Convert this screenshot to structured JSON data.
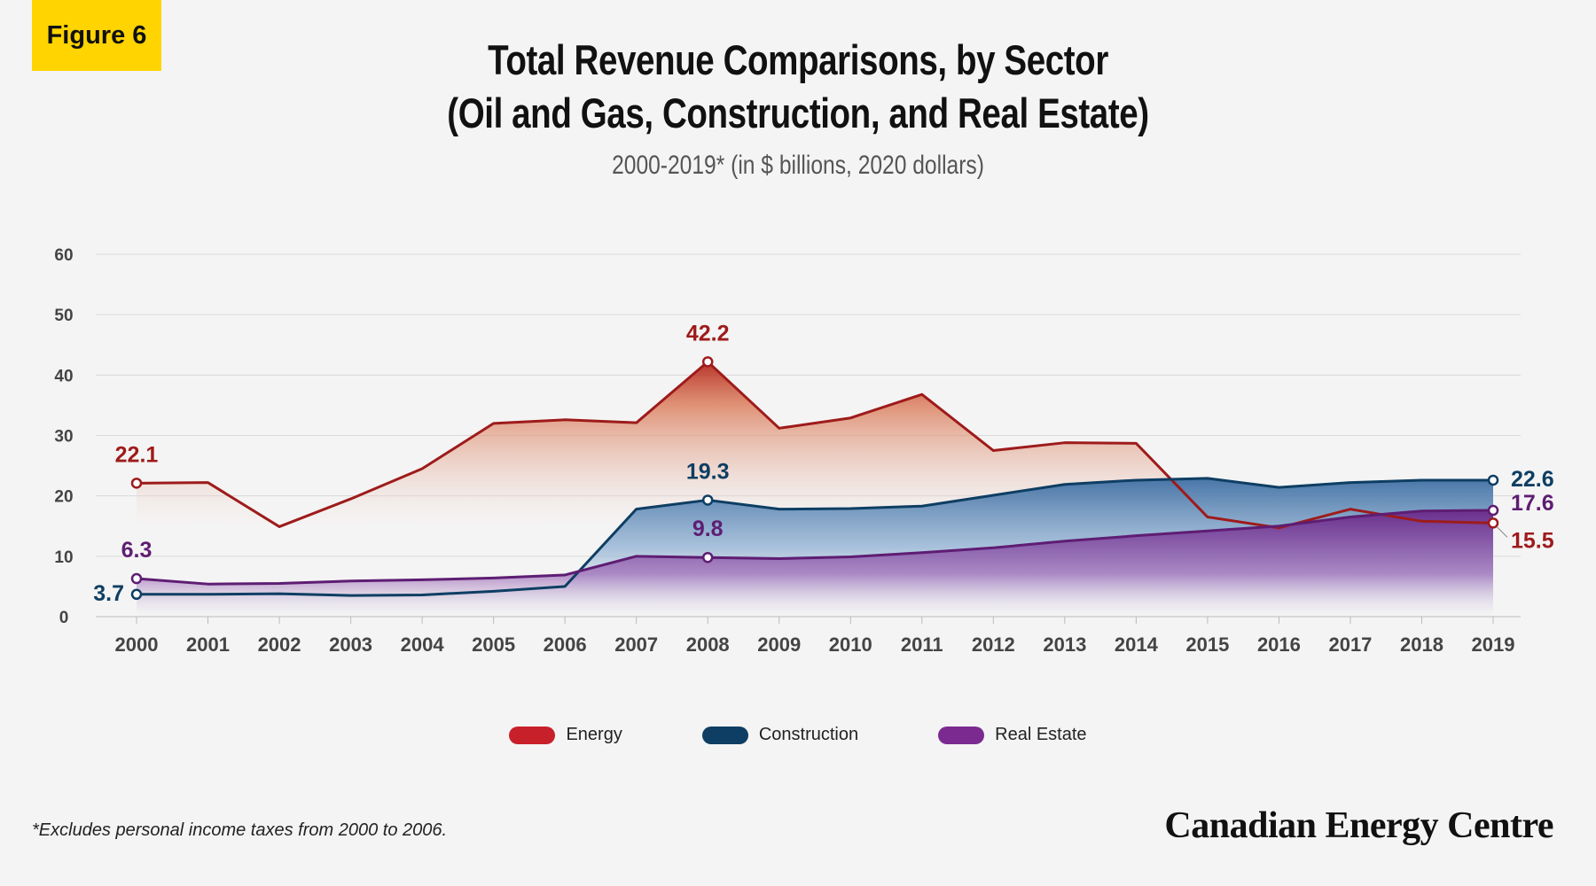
{
  "badge": "Figure 6",
  "title_line1": "Total Revenue Comparisons, by Sector",
  "title_line2": "(Oil and Gas, Construction, and Real Estate)",
  "subtitle": "2000-2019* (in $ billions, 2020 dollars)",
  "footnote": "*Excludes personal income taxes from 2000 to 2006.",
  "brand": "Canadian Energy Centre",
  "chart_data": {
    "type": "area",
    "categories": [
      "2000",
      "2001",
      "2002",
      "2003",
      "2004",
      "2005",
      "2006",
      "2007",
      "2008",
      "2009",
      "2010",
      "2011",
      "2012",
      "2013",
      "2014",
      "2015",
      "2016",
      "2017",
      "2018",
      "2019"
    ],
    "ylim": [
      0,
      60
    ],
    "yticks": [
      0,
      10,
      20,
      30,
      40,
      50,
      60
    ],
    "grid": true,
    "legend_placement": "bottom",
    "series": [
      {
        "name": "Energy",
        "color": "#9e1b1b",
        "legend_color": "#c8202a",
        "values": [
          22.1,
          22.2,
          14.9,
          19.5,
          24.5,
          32.0,
          32.6,
          32.1,
          42.2,
          31.2,
          32.9,
          36.8,
          27.5,
          28.8,
          28.7,
          16.5,
          14.7,
          17.8,
          15.8,
          15.5
        ],
        "labels": [
          {
            "x": "2000",
            "text": "22.1"
          },
          {
            "x": "2008",
            "text": "42.2"
          },
          {
            "x": "2019",
            "text": "15.5"
          }
        ]
      },
      {
        "name": "Construction",
        "color": "#0e3e63",
        "legend_color": "#0e3e63",
        "values": [
          3.7,
          3.7,
          3.8,
          3.5,
          3.6,
          4.2,
          5.0,
          17.8,
          19.3,
          17.8,
          17.9,
          18.3,
          20.1,
          21.9,
          22.6,
          22.9,
          21.4,
          22.2,
          22.6,
          22.6
        ],
        "labels": [
          {
            "x": "2000",
            "text": "3.7"
          },
          {
            "x": "2008",
            "text": "19.3"
          },
          {
            "x": "2019",
            "text": "22.6"
          }
        ]
      },
      {
        "name": "Real Estate",
        "color": "#5e1d73",
        "legend_color": "#7b2a90",
        "values": [
          6.3,
          5.4,
          5.5,
          5.9,
          6.1,
          6.4,
          6.9,
          10.0,
          9.8,
          9.6,
          9.9,
          10.6,
          11.4,
          12.5,
          13.4,
          14.2,
          15.0,
          16.5,
          17.5,
          17.6
        ],
        "labels": [
          {
            "x": "2000",
            "text": "6.3"
          },
          {
            "x": "2008",
            "text": "9.8"
          },
          {
            "x": "2019",
            "text": "17.6"
          }
        ]
      }
    ]
  }
}
